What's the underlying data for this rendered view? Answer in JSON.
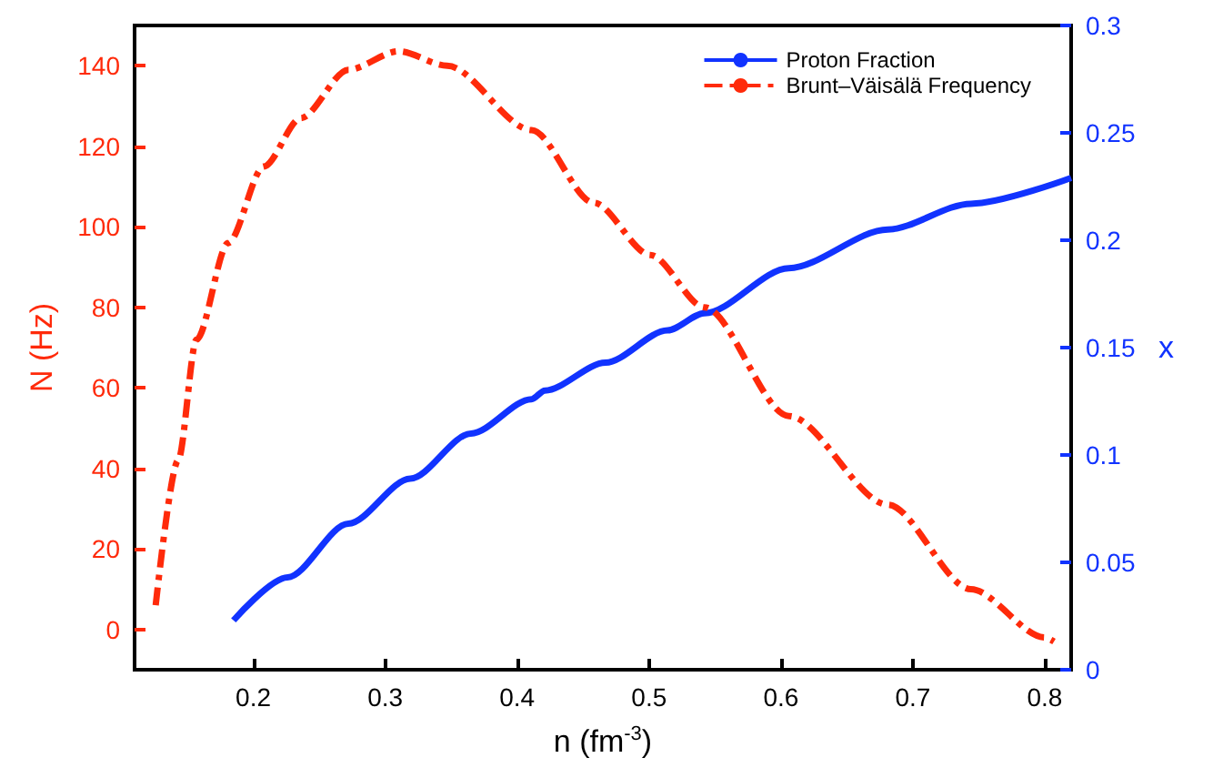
{
  "chart_data": {
    "type": "line",
    "xlabel": "n (fm$^{-3}$)",
    "ylabel": "N (Hz)",
    "y2label": "x",
    "xlim": [
      0.11,
      0.82
    ],
    "xticks": [
      0.2,
      0.3,
      0.4,
      0.5,
      0.6,
      0.7,
      0.8
    ],
    "ylim": [
      -10,
      150
    ],
    "yticks": [
      0,
      20,
      40,
      60,
      80,
      100,
      120,
      140
    ],
    "y2lim": [
      0,
      0.3
    ],
    "y2ticks": [
      0,
      0.05,
      0.1,
      0.15,
      0.2,
      0.25,
      0.3
    ],
    "grid": false,
    "legend": "top right",
    "marker": "none",
    "series": [
      {
        "name": "Proton Fraction",
        "color": "#1133ff",
        "axis": "y2",
        "line_style": "solid",
        "x": [
          0.185,
          0.226,
          0.272,
          0.319,
          0.365,
          0.411,
          0.421,
          0.467,
          0.514,
          0.542,
          0.606,
          0.681,
          0.744,
          0.82
        ],
        "values": [
          0.023,
          0.043,
          0.068,
          0.089,
          0.11,
          0.126,
          0.13,
          0.143,
          0.158,
          0.166,
          0.187,
          0.205,
          0.217,
          0.229
        ]
      },
      {
        "name": "Brunt–Väisälä Frequency",
        "color": "#ff2a0a",
        "line_style": "dashed",
        "x": [
          0.126,
          0.143,
          0.157,
          0.181,
          0.208,
          0.236,
          0.272,
          0.31,
          0.347,
          0.411,
          0.458,
          0.501,
          0.542,
          0.606,
          0.681,
          0.744,
          0.8,
          0.807
        ],
        "values": [
          6,
          42,
          72,
          96,
          115,
          127,
          139,
          143.6,
          140,
          124,
          106,
          93,
          80,
          53,
          31,
          10,
          -2,
          -3
        ]
      }
    ]
  }
}
